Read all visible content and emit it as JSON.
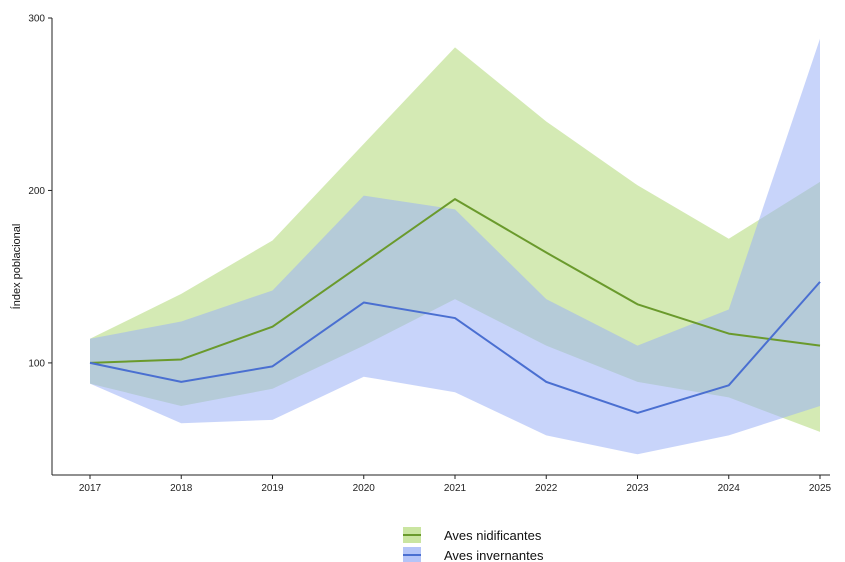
{
  "chart_data": {
    "type": "line",
    "title": "",
    "xlabel": "",
    "ylabel": "Índex poblacional",
    "x": [
      "2017",
      "2018",
      "2019",
      "2020",
      "2021",
      "2022",
      "2023",
      "2024",
      "2025"
    ],
    "yticks": [
      100,
      200,
      300
    ],
    "ylim": [
      35,
      300
    ],
    "grid": false,
    "legend_position": "bottom",
    "series": [
      {
        "name": "Aves nidificantes",
        "line_color": "#6a9a2c",
        "band_color": "#b8dc82",
        "values": [
          100,
          102,
          121,
          158,
          195,
          164,
          134,
          117,
          110
        ],
        "lower": [
          88,
          75,
          85,
          110,
          137,
          110,
          89,
          80,
          60
        ],
        "upper": [
          114,
          140,
          171,
          227,
          283,
          240,
          203,
          172,
          205
        ]
      },
      {
        "name": "Aves invernantes",
        "line_color": "#4a6fd1",
        "band_color": "#9bb0f5",
        "values": [
          100,
          89,
          98,
          135,
          126,
          89,
          71,
          87,
          147
        ],
        "lower": [
          88,
          65,
          67,
          92,
          83,
          58,
          47,
          58,
          75
        ],
        "upper": [
          114,
          124,
          142,
          197,
          189,
          137,
          110,
          131,
          288
        ]
      }
    ]
  }
}
